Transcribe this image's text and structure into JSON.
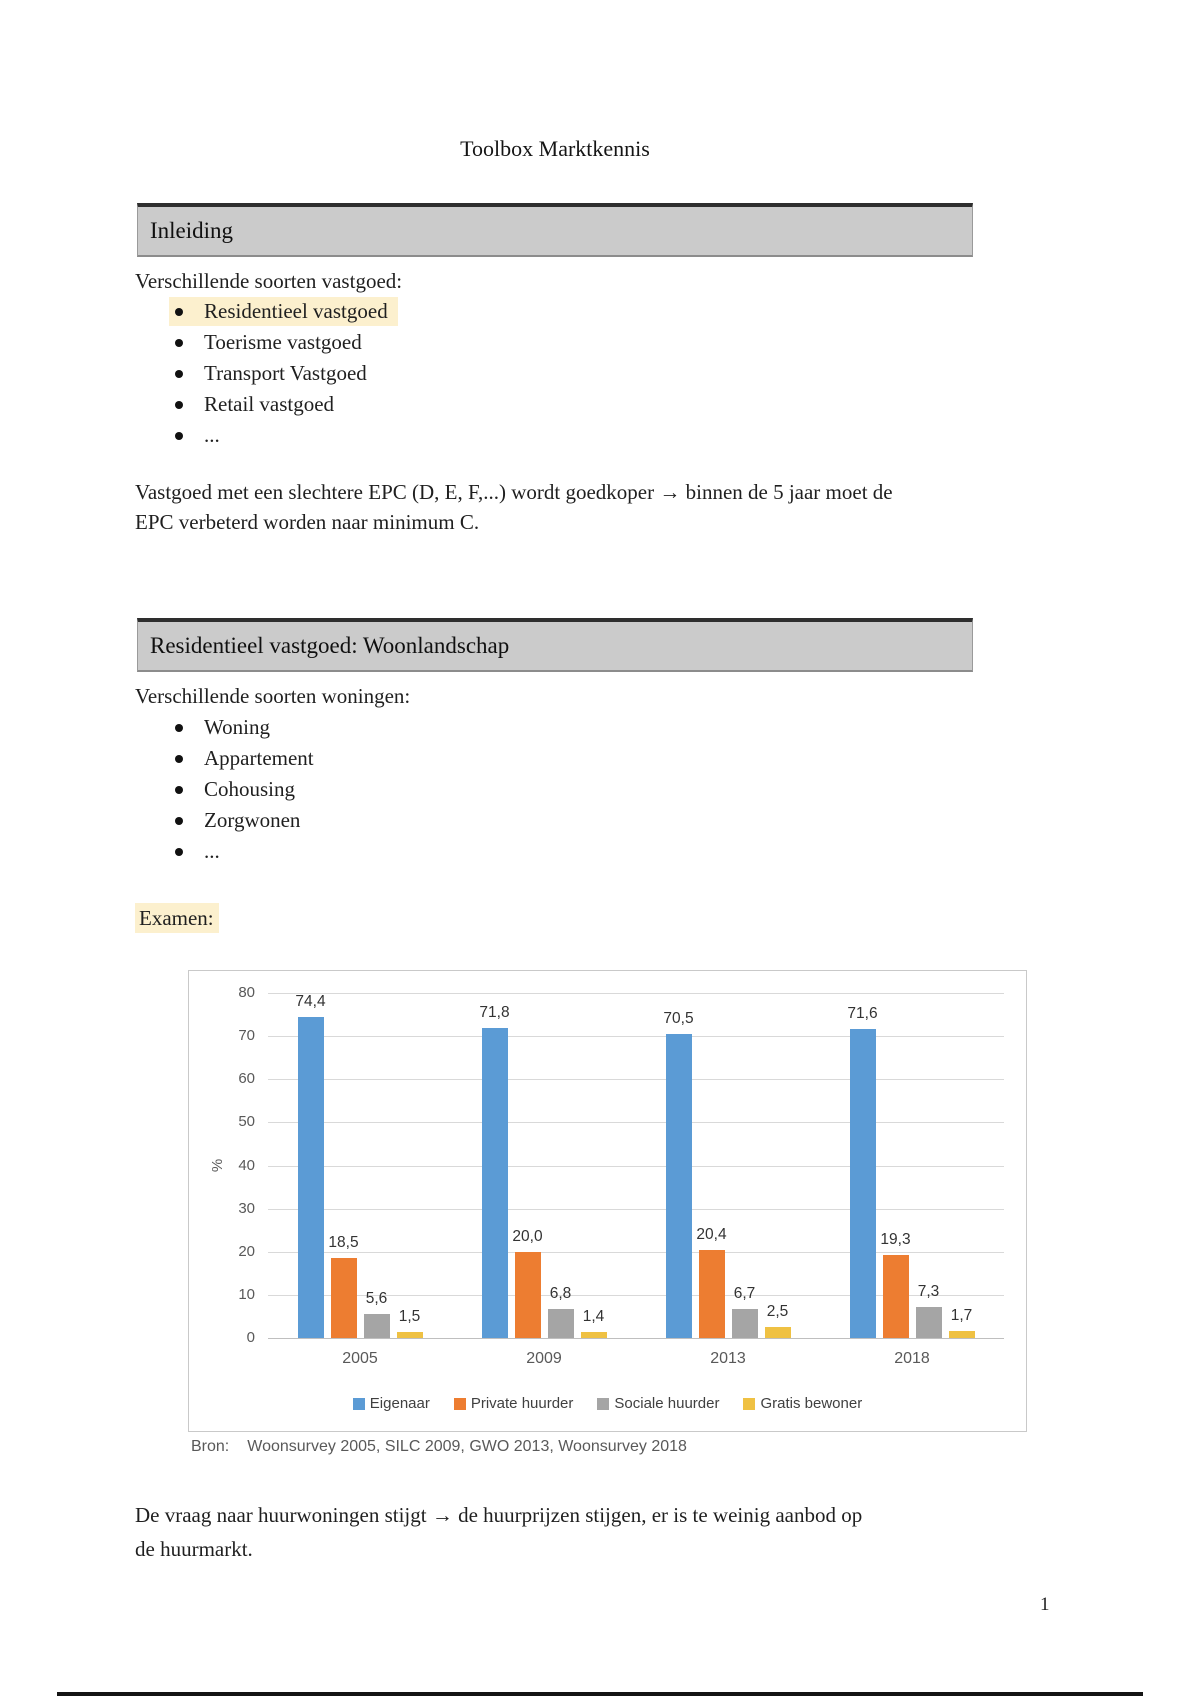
{
  "page": {
    "title": "Toolbox Marktkennis",
    "number": "1"
  },
  "sections": {
    "inleiding": {
      "heading": "Inleiding",
      "intro": "Verschillende soorten vastgoed:",
      "items": [
        "Residentieel vastgoed",
        "Toerisme vastgoed",
        "Transport Vastgoed",
        "Retail vastgoed",
        "..."
      ],
      "epc_line1": "Vastgoed met een slechtere EPC (D, E, F,...) wordt goedkoper → binnen de 5 jaar moet de",
      "epc_line2": "EPC verbeterd worden naar minimum C."
    },
    "woonlandschap": {
      "heading": "Residentieel vastgoed: Woonlandschap",
      "intro": "Verschillende soorten woningen:",
      "items": [
        "Woning",
        "Appartement",
        "Cohousing",
        "Zorgwonen",
        "..."
      ],
      "examen_label": "Examen:"
    }
  },
  "highlight_color": "#FCF0CE",
  "chart_data": {
    "type": "bar",
    "categories": [
      "2005",
      "2009",
      "2013",
      "2018"
    ],
    "series": [
      {
        "name": "Eigenaar",
        "color": "#5B9BD5",
        "values": [
          74.4,
          71.8,
          70.5,
          71.6
        ]
      },
      {
        "name": "Private huurder",
        "color": "#ED7D31",
        "values": [
          18.5,
          20.0,
          20.4,
          19.3
        ]
      },
      {
        "name": "Sociale huurder",
        "color": "#A5A5A5",
        "values": [
          5.6,
          6.8,
          6.7,
          7.3
        ]
      },
      {
        "name": "Gratis bewoner",
        "color": "#EFC143",
        "values": [
          1.5,
          1.4,
          2.5,
          1.7
        ]
      }
    ],
    "title": "",
    "xlabel": "",
    "ylabel": "%",
    "ylim": [
      0,
      80
    ],
    "ytick_step": 10,
    "grid": true,
    "legend_position": "bottom",
    "decimal_separator": ","
  },
  "chart_caption": {
    "label": "Bron:",
    "text": "Woonsurvey 2005, SILC 2009, GWO 2013, Woonsurvey 2018"
  },
  "closing_paragraph": {
    "line1": "De vraag naar huurwoningen stijgt → de huurprijzen stijgen, er is te weinig aanbod op",
    "line2": "de huurmarkt."
  }
}
